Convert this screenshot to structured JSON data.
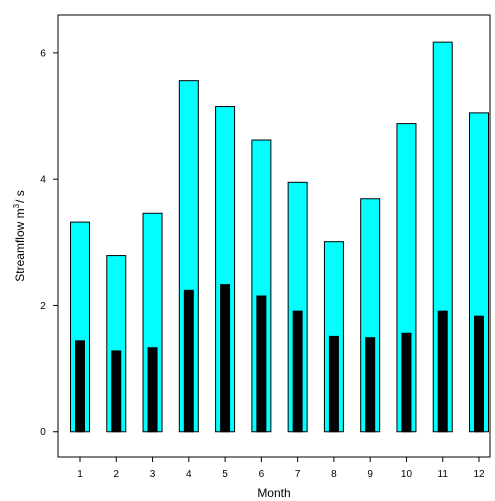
{
  "chart_data": {
    "type": "bar",
    "xlabel": "Month",
    "ylabel": "Streamflow m",
    "ylabel_sup": "3",
    "ylabel_suffix": "/ s",
    "ylim": [
      -0.4,
      6.6
    ],
    "yticks": [
      0,
      2,
      4,
      6
    ],
    "grid": false,
    "categories": [
      "1",
      "2",
      "3",
      "4",
      "5",
      "6",
      "7",
      "8",
      "9",
      "10",
      "11",
      "12"
    ],
    "series": [
      {
        "values": [
          3.32,
          2.79,
          3.46,
          5.56,
          5.15,
          4.62,
          3.95,
          3.01,
          3.69,
          4.88,
          6.17,
          5.05
        ],
        "color": "#00ffff"
      },
      {
        "values": [
          1.44,
          1.28,
          1.33,
          2.24,
          2.33,
          2.15,
          1.91,
          1.51,
          1.49,
          1.56,
          1.91,
          1.83
        ],
        "color": "#000000"
      }
    ]
  }
}
